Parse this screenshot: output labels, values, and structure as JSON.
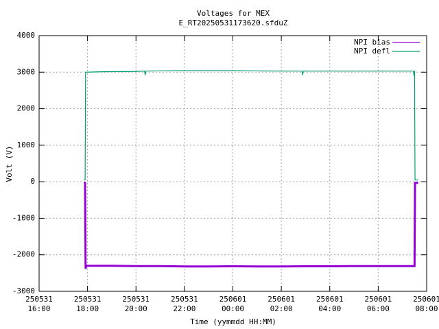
{
  "chart_data": {
    "type": "line",
    "title": "Voltages for MEX",
    "subtitle": "E_RT20250531173620.sfduZ",
    "x_label": "Time (yymmdd HH:MM)",
    "y_label": "Volt (V)",
    "xlim": [
      16,
      32
    ],
    "xticks": [
      {
        "value": 16,
        "label": "250531\n16:00"
      },
      {
        "value": 18,
        "label": "250531\n18:00"
      },
      {
        "value": 20,
        "label": "250531\n20:00"
      },
      {
        "value": 22,
        "label": "250531\n22:00"
      },
      {
        "value": 24,
        "label": "250601\n00:00"
      },
      {
        "value": 26,
        "label": "250601\n02:00"
      },
      {
        "value": 28,
        "label": "250601\n04:00"
      },
      {
        "value": 30,
        "label": "250601\n06:00"
      },
      {
        "value": 32,
        "label": "250601\n08:00"
      }
    ],
    "ylim": [
      -3000,
      4000
    ],
    "yticks": [
      -3000,
      -2000,
      -1000,
      0,
      1000,
      2000,
      3000,
      4000
    ],
    "grid": true,
    "legend": "top-right",
    "series": [
      {
        "name": "NPI bias",
        "color": "#9400d3",
        "x": [
          17.85,
          17.9,
          17.92,
          17.96,
          19,
          20,
          21,
          22,
          23,
          24,
          25,
          26,
          27,
          28,
          29,
          30,
          31,
          31.5,
          31.52,
          31.65
        ],
        "values": [
          -30,
          -30,
          -2380,
          -2300,
          -2300,
          -2310,
          -2310,
          -2320,
          -2320,
          -2315,
          -2320,
          -2320,
          -2315,
          -2315,
          -2310,
          -2310,
          -2310,
          -2310,
          -30,
          -30
        ]
      },
      {
        "name": "NPI defl",
        "color": "#009e73",
        "x": [
          17.85,
          17.9,
          17.92,
          18.5,
          19,
          20,
          20.35,
          20.38,
          20.41,
          21,
          22,
          23,
          24,
          25,
          26,
          26.85,
          26.88,
          26.91,
          28,
          29,
          30,
          31,
          31.45,
          31.48,
          31.5,
          31.52,
          31.65
        ],
        "values": [
          50,
          50,
          3000,
          3010,
          3015,
          3020,
          3030,
          2920,
          3030,
          3035,
          3040,
          3040,
          3040,
          3035,
          3030,
          3030,
          2920,
          3030,
          3030,
          3030,
          3030,
          3030,
          3030,
          2900,
          3030,
          50,
          50
        ]
      }
    ]
  }
}
